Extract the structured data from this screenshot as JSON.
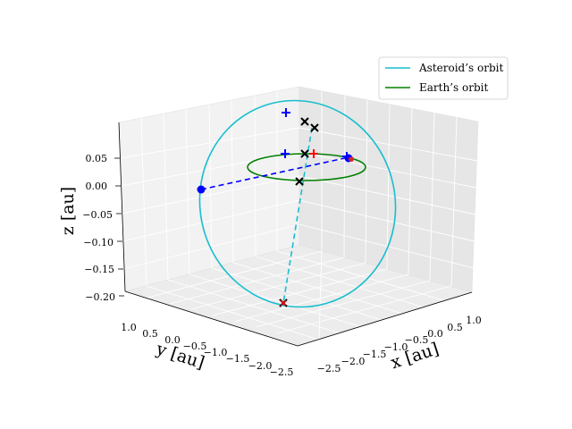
{
  "chart_data": {
    "type": "line",
    "projection": "3d",
    "title": "",
    "xlabel": "x [au]",
    "ylabel": "y [au]",
    "zlabel": "z [au]",
    "x_ticks": [
      "−2.5",
      "−2.0",
      "−1.5",
      "−1.0",
      "−0.5",
      "0.0",
      "0.5",
      "1.0"
    ],
    "y_ticks": [
      "−2.5",
      "−2.0",
      "−1.5",
      "−1.0",
      "−0.5",
      "0.0",
      "0.5",
      "1.0"
    ],
    "z_ticks": [
      "−0.20",
      "−0.15",
      "−0.10",
      "−0.05",
      "0.00",
      "0.05"
    ],
    "xlim": [
      -2.7,
      1.3
    ],
    "ylim": [
      -2.7,
      1.3
    ],
    "zlim": [
      -0.21,
      0.1
    ],
    "grid": true,
    "legend_position": "top-right",
    "colors": {
      "asteroid": "#17becf",
      "earth": "#008000",
      "nodes": "#0000ff",
      "markers": "#000000",
      "accent": "#ff0000"
    },
    "series": [
      {
        "name": "Asteroid’s orbit",
        "kind": "orbit",
        "color": "#17becf"
      },
      {
        "name": "Earth’s orbit",
        "kind": "orbit",
        "color": "#008000"
      }
    ],
    "points": [
      {
        "label": "node-left",
        "marker": "dot",
        "color": "#0000ff",
        "x": -1.6,
        "y": 0.9,
        "z": 0.0
      },
      {
        "label": "node-right",
        "marker": "dot",
        "color": "#0000ff",
        "x": 0.95,
        "y": -0.35,
        "z": 0.0
      },
      {
        "label": "asteroid-top",
        "marker": "plus",
        "color": "#0000ff",
        "x": -0.6,
        "y": -0.8,
        "z": 0.09
      },
      {
        "label": "earth-plus",
        "marker": "plus",
        "color": "#0000ff",
        "x": -0.4,
        "y": -0.9,
        "z": 0.0
      },
      {
        "label": "red-plus",
        "marker": "plus",
        "color": "#ff0000",
        "x": 0.35,
        "y": -0.85,
        "z": 0.0
      },
      {
        "label": "bottom-cross",
        "marker": "cross",
        "color": "#000000",
        "x": -1.5,
        "y": -0.9,
        "z": -0.2
      }
    ]
  }
}
